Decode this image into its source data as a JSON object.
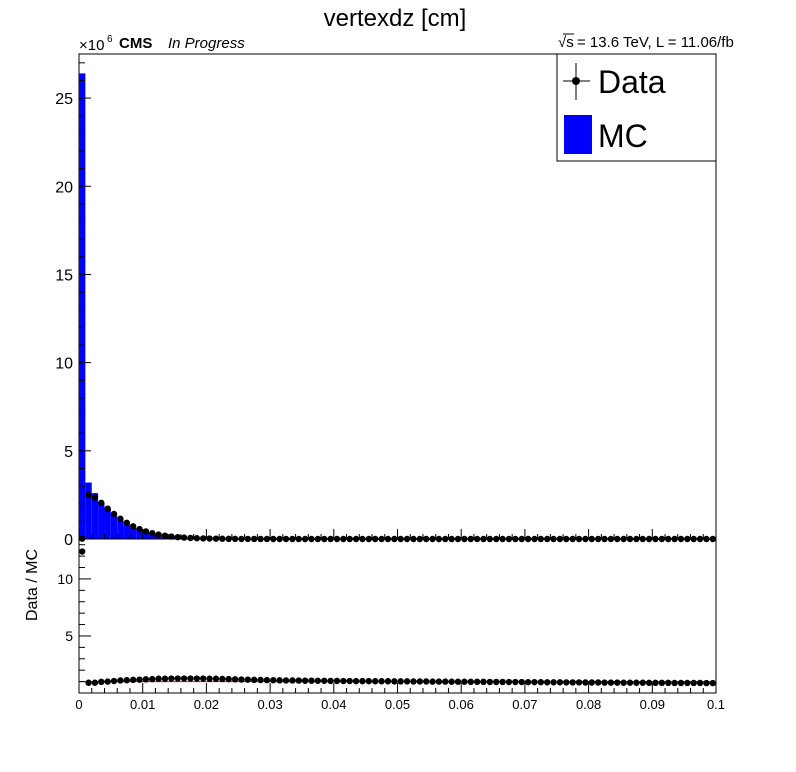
{
  "page": {
    "title": "vertexdz [cm]",
    "experiment": "CMS",
    "status": "In Progress",
    "energy_lumi": "= 13.6 TeV, L = 11.06/fb",
    "sqrt_s_symbol": "√s",
    "y_multiplier_base": "×10",
    "y_multiplier_exp": "6"
  },
  "legend": {
    "data_label": "Data",
    "mc_label": "MC"
  },
  "colors": {
    "mc_fill": "#0000ff",
    "data_marker": "#000000",
    "ratio_line": "#ff0000",
    "frame": "#000000"
  },
  "chart_data": [
    {
      "type": "bar",
      "panel": "main",
      "title": "vertexdz [cm]",
      "xlabel": "",
      "ylabel": "",
      "xlim": [
        0,
        0.1
      ],
      "ylim": [
        0,
        27.5
      ],
      "y_scale_label": "×10^6",
      "yticks": [
        0,
        5,
        10,
        15,
        20,
        25
      ],
      "grid": false,
      "legend_position": "top-right",
      "bin_width": 0.001,
      "series": [
        {
          "name": "MC",
          "style": "filled-histogram",
          "values": [
            26.4,
            3.2,
            2.6,
            2.1,
            1.7,
            1.35,
            1.05,
            0.82,
            0.63,
            0.48,
            0.36,
            0.27,
            0.2,
            0.15,
            0.11,
            0.08,
            0.06,
            0.045,
            0.034,
            0.026,
            0.02,
            0.015,
            0.011,
            0.008,
            0.006,
            0.005,
            0.004,
            0.003,
            0.0025,
            0.002
          ]
        },
        {
          "name": "Data",
          "style": "markers",
          "values": [
            0.02,
            2.5,
            2.35,
            2.05,
            1.72,
            1.42,
            1.15,
            0.92,
            0.72,
            0.56,
            0.43,
            0.33,
            0.25,
            0.19,
            0.14,
            0.105,
            0.08,
            0.06,
            0.045,
            0.034,
            0.026,
            0.02,
            0.015,
            0.011,
            0.008,
            0.006,
            0.005,
            0.004,
            0.003,
            0.0025
          ]
        }
      ]
    },
    {
      "type": "scatter",
      "panel": "ratio",
      "xlabel": "",
      "ylabel": "Data / MC",
      "xlim": [
        0,
        0.1
      ],
      "ylim": [
        0,
        13.5
      ],
      "xticks": [
        0,
        0.01,
        0.02,
        0.03,
        0.04,
        0.05,
        0.06,
        0.07,
        0.08,
        0.09,
        0.1
      ],
      "xtick_labels": [
        "0",
        "0.01",
        "0.02",
        "0.03",
        "0.04",
        "0.05",
        "0.06",
        "0.07",
        "0.08",
        "0.09",
        "0.1"
      ],
      "yticks": [
        5,
        10
      ],
      "reference_line": 1,
      "bin_width": 0.001,
      "series": [
        {
          "name": "Data / MC",
          "values": [
            12.4,
            0.9,
            0.9,
            0.98,
            1.0,
            1.05,
            1.1,
            1.12,
            1.15,
            1.17,
            1.2,
            1.22,
            1.25,
            1.25,
            1.27,
            1.27,
            1.27,
            1.27,
            1.27,
            1.27,
            1.25,
            1.25,
            1.23,
            1.22,
            1.2,
            1.18,
            1.17,
            1.15,
            1.14,
            1.13,
            1.12,
            1.11,
            1.1,
            1.1,
            1.09,
            1.08,
            1.08,
            1.07,
            1.07,
            1.06,
            1.06,
            1.05,
            1.05,
            1.04,
            1.04,
            1.04,
            1.03,
            1.03,
            1.03,
            1.02,
            1.02,
            1.02,
            1.01,
            1.01,
            1.01,
            1.0,
            1.0,
            1.0,
            0.99,
            0.99,
            0.99,
            0.98,
            0.98,
            0.98,
            0.97,
            0.97,
            0.97,
            0.96,
            0.96,
            0.96,
            0.95,
            0.95,
            0.95,
            0.94,
            0.94,
            0.94,
            0.93,
            0.93,
            0.93,
            0.92,
            0.92,
            0.92,
            0.91,
            0.91,
            0.91,
            0.9,
            0.9,
            0.9,
            0.9,
            0.89,
            0.89,
            0.89,
            0.89,
            0.88,
            0.88,
            0.88,
            0.88,
            0.88,
            0.87,
            0.87
          ]
        }
      ]
    }
  ]
}
